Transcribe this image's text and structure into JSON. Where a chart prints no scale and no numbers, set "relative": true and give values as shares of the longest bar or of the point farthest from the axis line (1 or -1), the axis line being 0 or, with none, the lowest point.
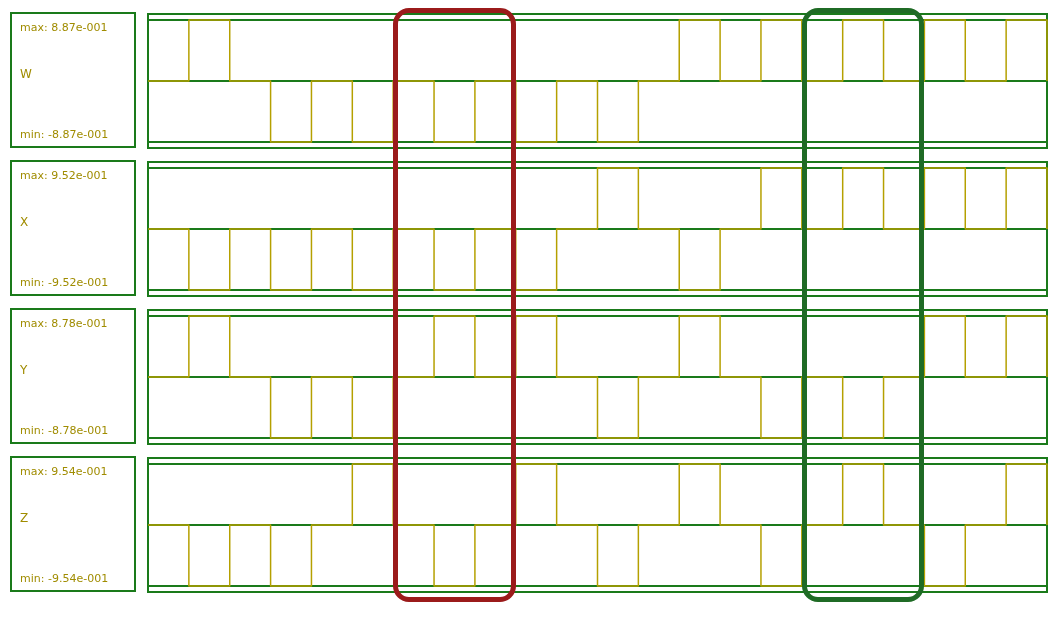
{
  "chart_data": [
    {
      "type": "step",
      "ylabel": "W",
      "annotations": [
        "max: 8.87e-001",
        "min: -8.87e-001"
      ],
      "relative": true,
      "categories": [
        null,
        null,
        null,
        null,
        null,
        null,
        null,
        null,
        null,
        null,
        null,
        null,
        null,
        null,
        null,
        null,
        null,
        null,
        null,
        null,
        null,
        null,
        null
      ],
      "series": [
        {
          "color": "#b5a000",
          "values": [
            0,
            1,
            0,
            -1,
            0,
            -1,
            0,
            -1,
            0,
            -1,
            0,
            -1,
            0,
            1,
            0,
            1,
            0,
            1,
            0,
            1,
            0,
            1,
            0
          ]
        }
      ],
      "ref_lines": [
        {
          "axis": "y",
          "value": 0,
          "color": "#1a7a1a"
        }
      ],
      "grid": "y",
      "marker": "none"
    },
    {
      "type": "step",
      "ylabel": "X",
      "annotations": [
        "max: 9.52e-001",
        "min: -9.52e-001"
      ],
      "relative": true,
      "categories": [
        null,
        null,
        null,
        null,
        null,
        null,
        null,
        null,
        null,
        null,
        null,
        null,
        null,
        null,
        null,
        null,
        null,
        null,
        null,
        null,
        null,
        null,
        null
      ],
      "series": [
        {
          "color": "#b5a000",
          "values": [
            0,
            -1,
            0,
            -1,
            0,
            -1,
            0,
            -1,
            0,
            -1,
            0,
            1,
            0,
            -1,
            0,
            1,
            0,
            1,
            0,
            1,
            0,
            1,
            0
          ]
        }
      ],
      "ref_lines": [
        {
          "axis": "y",
          "value": 0,
          "color": "#1a7a1a"
        }
      ],
      "grid": "y",
      "marker": "none"
    },
    {
      "type": "step",
      "ylabel": "Y",
      "annotations": [
        "max: 8.78e-001",
        "min: -8.78e-001"
      ],
      "relative": true,
      "categories": [
        null,
        null,
        null,
        null,
        null,
        null,
        null,
        null,
        null,
        null,
        null,
        null,
        null,
        null,
        null,
        null,
        null,
        null,
        null,
        null,
        null,
        null,
        null
      ],
      "series": [
        {
          "color": "#b5a000",
          "values": [
            0,
            1,
            0,
            -1,
            0,
            -1,
            0,
            1,
            0,
            1,
            0,
            -1,
            0,
            1,
            0,
            -1,
            0,
            -1,
            0,
            1,
            0,
            1,
            0
          ]
        }
      ],
      "ref_lines": [
        {
          "axis": "y",
          "value": 0,
          "color": "#1a7a1a"
        }
      ],
      "grid": "y",
      "marker": "none"
    },
    {
      "type": "step",
      "ylabel": "Z",
      "annotations": [
        "max: 9.54e-001",
        "min: -9.54e-001"
      ],
      "relative": true,
      "categories": [
        null,
        null,
        null,
        null,
        null,
        null,
        null,
        null,
        null,
        null,
        null,
        null,
        null,
        null,
        null,
        null,
        null,
        null,
        null,
        null,
        null,
        null,
        null
      ],
      "series": [
        {
          "color": "#b5a000",
          "values": [
            0,
            -1,
            0,
            -1,
            0,
            1,
            0,
            -1,
            0,
            1,
            0,
            -1,
            0,
            1,
            0,
            -1,
            0,
            1,
            0,
            -1,
            0,
            1,
            0
          ]
        }
      ],
      "ref_lines": [
        {
          "axis": "y",
          "value": 0,
          "color": "#1a7a1a"
        }
      ],
      "grid": "y",
      "marker": "none"
    }
  ]
}
